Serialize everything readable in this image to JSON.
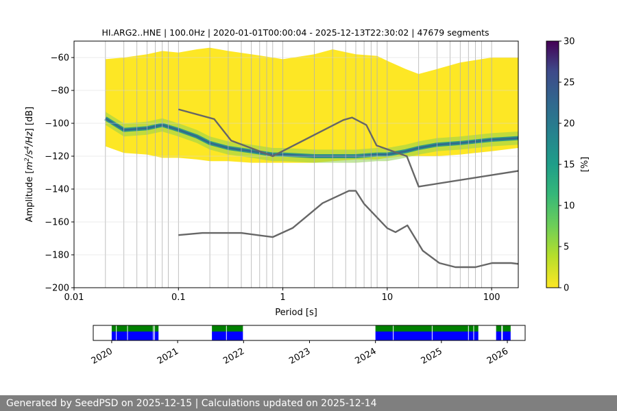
{
  "chart_data": [
    {
      "type": "heatmap",
      "title": "HI.ARG2..HNE | 100.0Hz | 2020-01-01T00:00:04 - 2025-12-13T22:30:02 | 47679 segments",
      "xlabel": "Period [s]",
      "ylabel": "Amplitude [$m^2/s^4/Hz$] [dB]",
      "x_scale": "log",
      "xlim": [
        0.01,
        180
      ],
      "ylim": [
        -200,
        -50
      ],
      "x_ticks": [
        "0.01",
        "0.1",
        "1",
        "10",
        "100"
      ],
      "y_ticks": [
        "−60",
        "−80",
        "−100",
        "−120",
        "−140",
        "−160",
        "−180",
        "−200"
      ],
      "grid_periods": [
        0.02,
        0.03,
        0.04,
        0.05,
        0.06,
        0.07,
        0.08,
        0.1,
        0.2,
        0.3,
        0.4,
        0.5,
        0.6,
        0.7,
        0.8,
        1,
        2,
        3,
        4,
        5,
        6,
        7,
        8,
        10,
        20,
        30,
        40,
        50,
        60,
        70,
        80,
        100
      ],
      "colorbar": {
        "label": "[%]",
        "range": [
          0,
          30
        ],
        "ticks": [
          "0",
          "5",
          "10",
          "15",
          "20",
          "25",
          "30"
        ],
        "colormap": "viridis_r"
      },
      "psd_envelope": {
        "period": [
          0.02,
          0.03,
          0.05,
          0.07,
          0.1,
          0.15,
          0.2,
          0.3,
          0.5,
          0.8,
          1,
          2,
          3,
          5,
          8,
          10,
          15,
          20,
          30,
          50,
          100,
          180
        ],
        "max_db": [
          -61,
          -60,
          -58,
          -56,
          -57,
          -55,
          -54,
          -56,
          -58,
          -60,
          -61,
          -58,
          -55,
          -58,
          -59,
          -62,
          -67,
          -70,
          -67,
          -63,
          -60,
          -60
        ],
        "min_db": [
          -114,
          -118,
          -119,
          -121,
          -121,
          -122,
          -123,
          -123,
          -124,
          -124,
          -124,
          -124,
          -123,
          -122,
          -122,
          -121,
          -120,
          -120,
          -120,
          -119,
          -117,
          -115
        ],
        "mode_db": [
          -97,
          -104,
          -103,
          -101,
          -104,
          -108,
          -112,
          -115,
          -117,
          -119,
          -119,
          -120,
          -120,
          -120,
          -119,
          -119,
          -117,
          -115,
          -113,
          -112,
          -110,
          -109
        ]
      },
      "series": [
        {
          "name": "NHNM",
          "color": "#666666",
          "period": [
            0.1,
            0.22,
            0.32,
            0.8,
            3.8,
            4.6,
            6.3,
            7.9,
            15.4,
            20,
            354.8
          ],
          "db": [
            -91.5,
            -97.4,
            -110.5,
            -120,
            -98,
            -96.5,
            -101,
            -113.5,
            -120,
            -138.5,
            -126
          ]
        },
        {
          "name": "NLNM",
          "color": "#666666",
          "period": [
            0.1,
            0.17,
            0.4,
            0.8,
            1.24,
            2.4,
            4.3,
            5,
            6,
            10,
            12,
            15.6,
            21.9,
            31.6,
            45,
            70,
            101,
            154,
            328
          ],
          "db": [
            -168,
            -166.7,
            -166.7,
            -169.2,
            -163.7,
            -148.6,
            -141.1,
            -141.1,
            -149,
            -163.8,
            -166.2,
            -162.1,
            -177.5,
            -185,
            -187.5,
            -187.5,
            -185,
            -185,
            -187.5
          ]
        }
      ]
    },
    {
      "type": "timeline",
      "x_ticks": [
        "2020",
        "2021",
        "2022",
        "2023",
        "2024",
        "2025",
        "2026"
      ],
      "top_color": "#008000",
      "bottom_color": "#0000ff",
      "coverage_years": [
        [
          2020.0,
          2020.71
        ],
        [
          2021.52,
          2021.99
        ],
        [
          2024.0,
          2025.56
        ],
        [
          2025.83,
          2025.91
        ],
        [
          2025.93,
          2026.05
        ]
      ],
      "gap_years": [
        2020.07,
        2020.24,
        2020.63,
        2020.65,
        2021.74,
        2024.27,
        2024.86,
        2025.41,
        2025.49
      ]
    }
  ],
  "footer": {
    "text": "Generated by SeedPSD on 2025-12-15 | Calculations updated on 2025-12-14"
  }
}
